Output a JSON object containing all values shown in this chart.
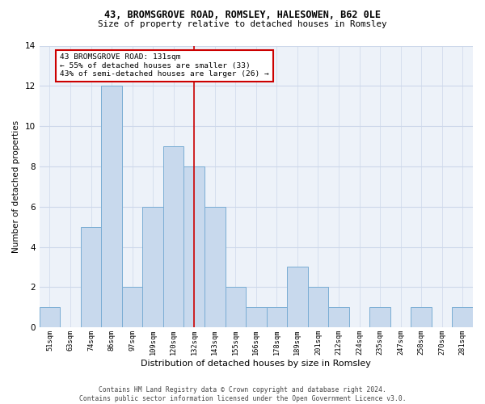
{
  "title1": "43, BROMSGROVE ROAD, ROMSLEY, HALESOWEN, B62 0LE",
  "title2": "Size of property relative to detached houses in Romsley",
  "xlabel": "Distribution of detached houses by size in Romsley",
  "ylabel": "Number of detached properties",
  "categories": [
    "51sqm",
    "63sqm",
    "74sqm",
    "86sqm",
    "97sqm",
    "109sqm",
    "120sqm",
    "132sqm",
    "143sqm",
    "155sqm",
    "166sqm",
    "178sqm",
    "189sqm",
    "201sqm",
    "212sqm",
    "224sqm",
    "235sqm",
    "247sqm",
    "258sqm",
    "270sqm",
    "281sqm"
  ],
  "values": [
    1,
    0,
    5,
    12,
    2,
    6,
    9,
    8,
    6,
    2,
    1,
    1,
    3,
    2,
    1,
    0,
    1,
    0,
    1,
    0,
    1
  ],
  "bar_color": "#c8d9ed",
  "bar_edge_color": "#7aadd4",
  "ref_line_index": 7,
  "ref_line_color": "#cc0000",
  "annotation_line1": "43 BROMSGROVE ROAD: 131sqm",
  "annotation_line2": "← 55% of detached houses are smaller (33)",
  "annotation_line3": "43% of semi-detached houses are larger (26) →",
  "annotation_box_color": "#cc0000",
  "ylim": [
    0,
    14
  ],
  "yticks": [
    0,
    2,
    4,
    6,
    8,
    10,
    12,
    14
  ],
  "grid_color": "#cdd8ea",
  "bg_color": "#edf2f9",
  "footnote1": "Contains HM Land Registry data © Crown copyright and database right 2024.",
  "footnote2": "Contains public sector information licensed under the Open Government Licence v3.0."
}
